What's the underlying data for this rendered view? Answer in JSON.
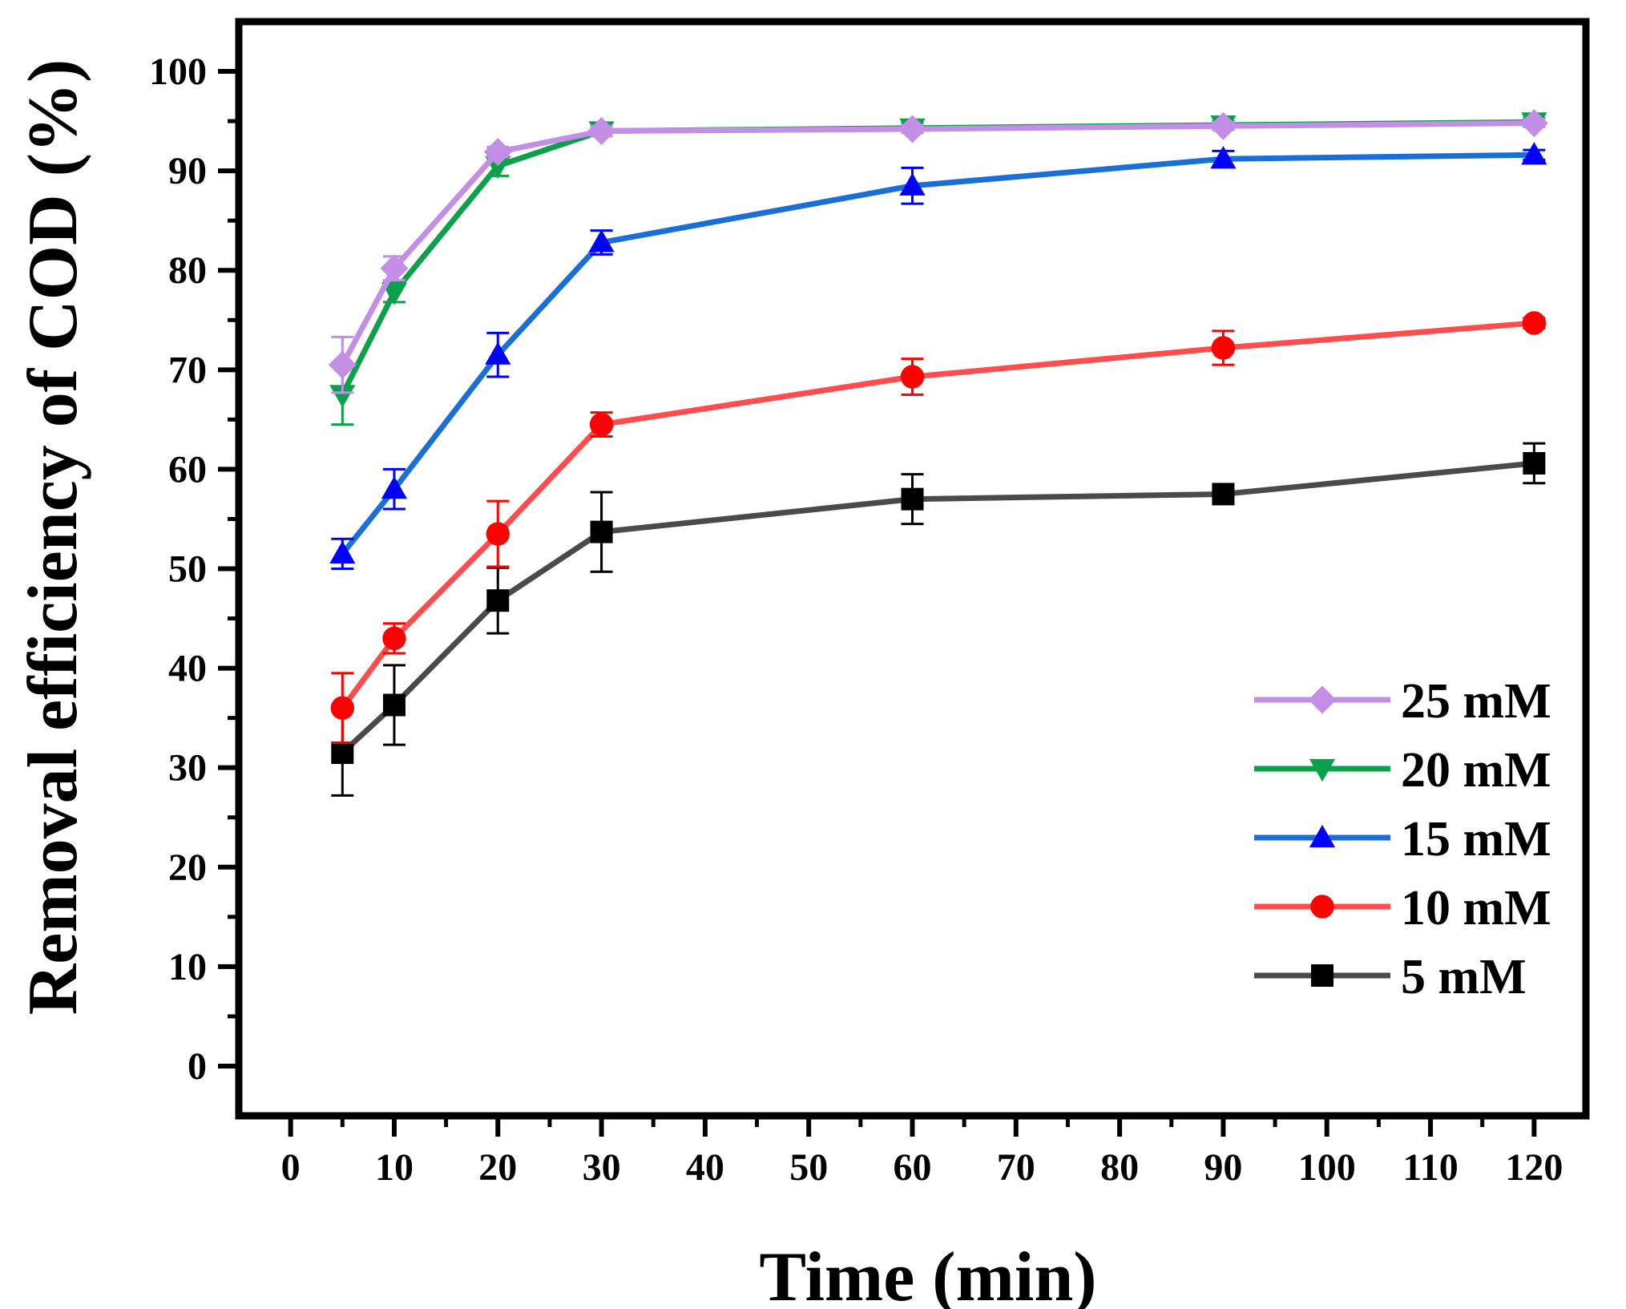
{
  "chart_data": {
    "type": "line",
    "xlabel": "Time (min)",
    "ylabel": "Removal efficiency of COD (%)",
    "xlim": [
      -5,
      125
    ],
    "ylim": [
      -5,
      105
    ],
    "xticks": [
      0,
      10,
      20,
      30,
      40,
      50,
      60,
      70,
      80,
      90,
      100,
      110,
      120
    ],
    "yticks": [
      0,
      10,
      20,
      30,
      40,
      50,
      60,
      70,
      80,
      90,
      100
    ],
    "grid": false,
    "legend_position": "bottom-right",
    "x": [
      5,
      10,
      20,
      30,
      60,
      90,
      120
    ],
    "series": [
      {
        "name": "25 mM",
        "marker": "diamond",
        "color": "#c38ee6",
        "values": [
          70.5,
          80.2,
          91.9,
          94.0,
          94.2,
          94.5,
          94.8
        ],
        "errors": [
          2.8,
          1.2,
          0.5,
          0.5,
          0.4,
          0.4,
          0.4
        ]
      },
      {
        "name": "20 mM",
        "marker": "triangle-down",
        "color": "#0ba04a",
        "values": [
          67.5,
          77.8,
          90.5,
          94.0,
          94.3,
          94.6,
          94.9
        ],
        "errors": [
          3.0,
          1.0,
          1.0,
          0.5,
          0.5,
          0.4,
          0.4
        ]
      },
      {
        "name": "15 mM",
        "marker": "triangle-up",
        "color": "#1a6fd6",
        "marker_color": "#0000ff",
        "values": [
          51.5,
          58.0,
          71.5,
          82.8,
          88.5,
          91.2,
          91.6
        ],
        "errors": [
          1.5,
          2.0,
          2.2,
          1.2,
          1.8,
          0.8,
          0.5
        ]
      },
      {
        "name": "10 mM",
        "marker": "circle",
        "color": "#ff4d4d",
        "marker_color": "#ff0000",
        "values": [
          36.0,
          43.0,
          53.5,
          64.5,
          69.3,
          72.2,
          74.7
        ],
        "errors": [
          3.5,
          1.5,
          3.3,
          1.2,
          1.8,
          1.7,
          0.5
        ]
      },
      {
        "name": "5 mM",
        "marker": "square",
        "color": "#4a4a4a",
        "marker_color": "#000000",
        "values": [
          31.5,
          36.3,
          46.8,
          53.7,
          57.0,
          57.5,
          60.6
        ],
        "errors": [
          4.3,
          4.0,
          3.3,
          4.0,
          2.5,
          0.4,
          2.0
        ]
      }
    ]
  }
}
